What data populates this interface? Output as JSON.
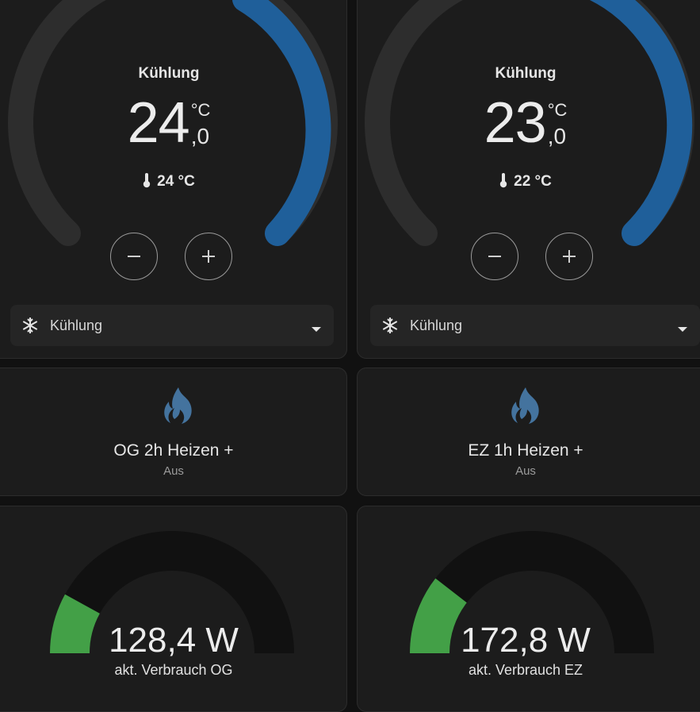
{
  "thermostats": [
    {
      "mode_label": "Kühlung",
      "target_int": "24",
      "target_unit": "°C",
      "target_dec": ",0",
      "current_temp": "24 °C",
      "hvac_mode_selected": "Kühlung",
      "minus_symbol": "−",
      "plus_symbol": "+",
      "accent_color": "#1f5f9a"
    },
    {
      "mode_label": "Kühlung",
      "target_int": "23",
      "target_unit": "°C",
      "target_dec": ",0",
      "current_temp": "22 °C",
      "hvac_mode_selected": "Kühlung",
      "minus_symbol": "−",
      "plus_symbol": "+",
      "accent_color": "#1f5f9a"
    }
  ],
  "buttons": [
    {
      "name": "OG 2h Heizen +",
      "state": "Aus",
      "icon": "fire-icon",
      "icon_color": "#44739e"
    },
    {
      "name": "EZ 1h Heizen +",
      "state": "Aus",
      "icon": "fire-icon",
      "icon_color": "#44739e"
    }
  ],
  "gauges": [
    {
      "value": "128,4 W",
      "label": "akt. Verbrauch OG",
      "fraction": 0.16,
      "color": "#43a047"
    },
    {
      "value": "172,8 W",
      "label": "akt. Verbrauch EZ",
      "fraction": 0.21,
      "color": "#43a047"
    }
  ]
}
